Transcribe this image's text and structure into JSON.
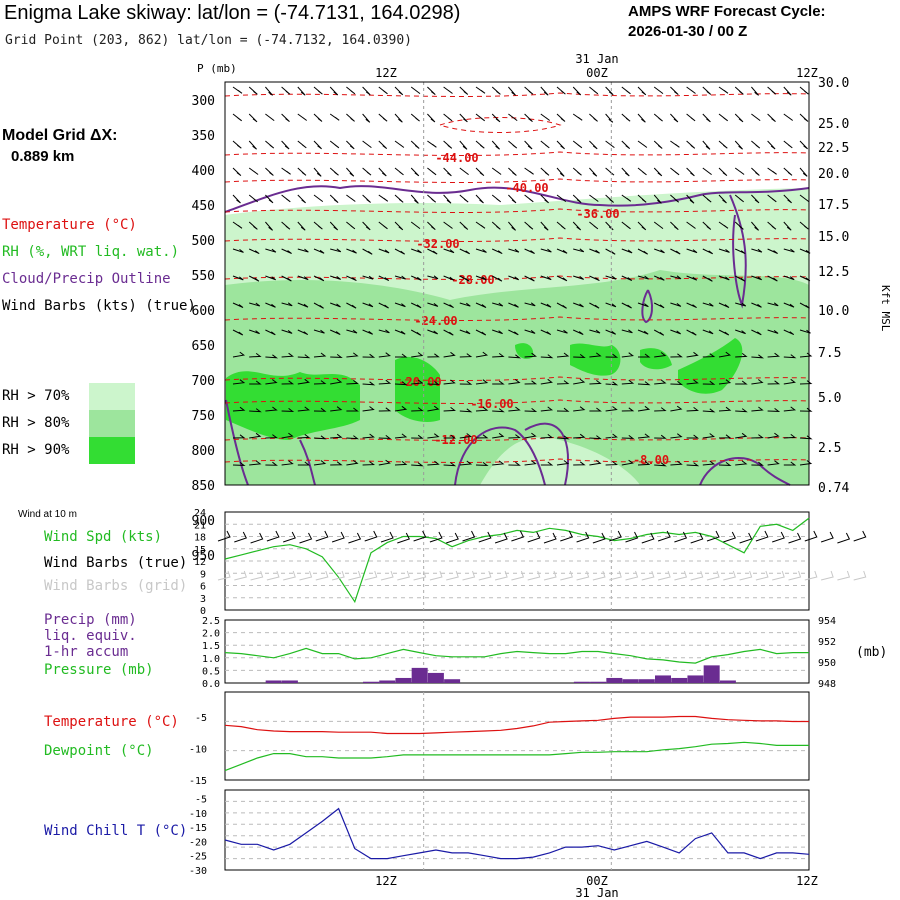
{
  "header": {
    "title": "Enigma Lake skiway:  lat/lon = (-74.7131, 164.0298)",
    "grid_point": "Grid Point (203, 862) lat/lon = (-74.7132, 164.0390)",
    "cycle_label": "AMPS WRF Forecast Cycle:",
    "cycle_value": "2026-01-30 / 00  Z"
  },
  "left_panel": {
    "model_grid_label": "Model Grid ΔX:",
    "model_grid_value": "0.889 km",
    "legend_temp": "Temperature (°C)",
    "legend_rh": "RH (%, WRT liq. wat.)",
    "legend_cloud": "Cloud/Precip Outline",
    "legend_wind": "Wind Barbs (kts) (true)",
    "rh_levels": [
      "RH > 70%",
      "RH > 80%",
      "RH > 90%"
    ],
    "wind10m_title": "Wind at 10 m",
    "wind_spd": "Wind Spd (kts)",
    "wind_barbs_true": "Wind Barbs (true)",
    "wind_barbs_grid": "Wind Barbs (grid)",
    "precip_1": "Precip (mm)",
    "precip_2": "liq. equiv.",
    "precip_3": "1-hr accum",
    "pressure": "Pressure (mb)",
    "temp2": "Temperature (°C)",
    "dewpoint": "Dewpoint (°C)",
    "windchill": "Wind Chill T (°C)"
  },
  "colors": {
    "temp": "#dd1111",
    "rh_green": "#22bb22",
    "cloud": "#6a2c91",
    "rh70": "#ccf5cc",
    "rh80": "#9de59d",
    "rh90": "#33dd33",
    "windchill": "#1a1aa6",
    "barb_grid": "#c8c8c8"
  },
  "chart_data": [
    {
      "name": "time-height cross section",
      "type": "heatmap",
      "xlabel": "",
      "time_ticks": [
        "12Z",
        "00Z",
        "12Z"
      ],
      "date_label": "31 Jan",
      "ylabel_left": "P (mb)",
      "pressure_levels": [
        300,
        350,
        400,
        450,
        500,
        550,
        600,
        650,
        700,
        750,
        800,
        850,
        900,
        950
      ],
      "ylabel_right": "Kft MSL",
      "altitude_ticks": [
        "30.0",
        "25.0",
        "22.5",
        "20.0",
        "17.5",
        "15.0",
        "12.5",
        "10.0",
        "7.5",
        "5.0",
        "2.5",
        "0.74"
      ],
      "temp_contour_labels": [
        "-44.00",
        "-40.00",
        "-36.00",
        "-32.00",
        "-28.00",
        "-24.00",
        "-20.00",
        "-16.00",
        "-12.00",
        "-8.00"
      ],
      "rh_thresholds": [
        70,
        80,
        90
      ]
    },
    {
      "name": "10 m wind speed",
      "type": "line",
      "title": "Wind at 10 m",
      "ylabel": "Wind Spd (kts)",
      "yticks": [
        "24",
        "21",
        "18",
        "15",
        "12",
        "9",
        "6",
        "3",
        "0"
      ],
      "ylim": [
        0,
        24
      ],
      "x": [
        0,
        1,
        2,
        3,
        4,
        5,
        6,
        7,
        8,
        9,
        10,
        11,
        12,
        13,
        14,
        15,
        16,
        17,
        18,
        19,
        20,
        21,
        22,
        23,
        24,
        25,
        26,
        27,
        28,
        29,
        30,
        31,
        32,
        33,
        34,
        35,
        36
      ],
      "values": [
        12.5,
        13.5,
        14.5,
        15.5,
        16,
        15,
        13,
        8,
        2,
        14,
        16.5,
        18,
        18,
        17.5,
        15.5,
        17,
        18,
        18.5,
        19.5,
        19,
        20,
        19.5,
        18.5,
        18,
        17,
        17.5,
        18.5,
        19,
        18.5,
        19,
        18,
        16,
        14,
        20.5,
        21,
        19.5,
        22.5
      ]
    },
    {
      "name": "precip and pressure",
      "type": "bar",
      "ylabel_left": "Precip (mm)",
      "ylabel_right": "(mb)",
      "precip_yticks": [
        "2.5",
        "2.0",
        "1.5",
        "1.0",
        "0.5",
        "0.0"
      ],
      "pressure_yticks": [
        "954",
        "952",
        "950",
        "948"
      ],
      "precip_ylim": [
        0,
        2.5
      ],
      "pressure_ylim": [
        948,
        954
      ],
      "x": [
        0,
        1,
        2,
        3,
        4,
        5,
        6,
        7,
        8,
        9,
        10,
        11,
        12,
        13,
        14,
        15,
        16,
        17,
        18,
        19,
        20,
        21,
        22,
        23,
        24,
        25,
        26,
        27,
        28,
        29,
        30,
        31,
        32,
        33,
        34,
        35,
        36
      ],
      "precip": [
        0,
        0,
        0,
        0.1,
        0.1,
        0,
        0,
        0,
        0,
        0.05,
        0.1,
        0.2,
        0.6,
        0.4,
        0.15,
        0,
        0,
        0,
        0,
        0,
        0,
        0,
        0.05,
        0.05,
        0.2,
        0.15,
        0.15,
        0.3,
        0.2,
        0.3,
        0.7,
        0.1,
        0,
        0,
        0,
        0,
        0
      ],
      "pressure": [
        950.9,
        950.8,
        950.6,
        950.4,
        950.8,
        951.3,
        950.8,
        950.8,
        950.3,
        950.4,
        950.8,
        951.2,
        950.9,
        950.6,
        950.5,
        950.5,
        950.5,
        950.8,
        951.0,
        950.9,
        950.8,
        950.8,
        951.0,
        951.0,
        950.8,
        950.6,
        950.3,
        950.2,
        950.0,
        949.9,
        950.5,
        950.7,
        951.0,
        951.2,
        950.8,
        950.9,
        950.9
      ]
    },
    {
      "name": "temperature and dewpoint",
      "type": "line",
      "yticks": [
        "-5",
        "-10",
        "-15"
      ],
      "ylim": [
        -15,
        -1
      ],
      "x": [
        0,
        1,
        2,
        3,
        4,
        5,
        6,
        7,
        8,
        9,
        10,
        11,
        12,
        13,
        14,
        15,
        16,
        17,
        18,
        19,
        20,
        21,
        22,
        23,
        24,
        25,
        26,
        27,
        28,
        29,
        30,
        31,
        32,
        33,
        34,
        35,
        36
      ],
      "series": [
        {
          "name": "Temperature",
          "values": [
            -6.3,
            -6.5,
            -7.0,
            -7.2,
            -7.3,
            -7.3,
            -7.3,
            -7.4,
            -7.4,
            -7.4,
            -7.6,
            -7.6,
            -7.6,
            -7.5,
            -7.4,
            -7.3,
            -7.2,
            -7.1,
            -6.8,
            -6.4,
            -5.8,
            -5.7,
            -5.6,
            -5.5,
            -5.2,
            -5.0,
            -5.0,
            -5.0,
            -4.9,
            -4.9,
            -5.2,
            -5.4,
            -5.5,
            -5.6,
            -5.6,
            -5.7,
            -5.7
          ]
        },
        {
          "name": "Dewpoint",
          "values": [
            -13.5,
            -12.5,
            -11.5,
            -10.8,
            -10.8,
            -11.3,
            -11.3,
            -11.5,
            -11.5,
            -11.5,
            -11.3,
            -11.0,
            -11.0,
            -11.0,
            -11.0,
            -11.0,
            -11.0,
            -11.0,
            -11.0,
            -11.0,
            -11.0,
            -10.8,
            -10.6,
            -10.6,
            -10.5,
            -10.5,
            -10.5,
            -10.2,
            -10.0,
            -9.7,
            -9.3,
            -9.2,
            -9.0,
            -9.2,
            -9.5,
            -9.5,
            -9.5
          ]
        }
      ]
    },
    {
      "name": "wind chill",
      "type": "line",
      "ylabel": "Wind Chill T (°C)",
      "yticks": [
        "-5",
        "-10",
        "-15",
        "-20",
        "-25",
        "-30"
      ],
      "ylim": [
        -30,
        -2
      ],
      "x": [
        0,
        1,
        2,
        3,
        4,
        5,
        6,
        7,
        8,
        9,
        10,
        11,
        12,
        13,
        14,
        15,
        16,
        17,
        18,
        19,
        20,
        21,
        22,
        23,
        24,
        25,
        26,
        27,
        28,
        29,
        30,
        31,
        32,
        33,
        34,
        35,
        36
      ],
      "values": [
        -19.5,
        -21,
        -21,
        -23,
        -21,
        -17,
        -13,
        -8.5,
        -22.5,
        -26,
        -26,
        -25,
        -24,
        -23,
        -24,
        -24,
        -25,
        -26,
        -26,
        -25.5,
        -24,
        -22,
        -22,
        -21.5,
        -23,
        -21.5,
        -20,
        -22,
        -24,
        -19,
        -17,
        -24,
        -24,
        -26,
        -24,
        -24,
        -24.5
      ]
    }
  ]
}
